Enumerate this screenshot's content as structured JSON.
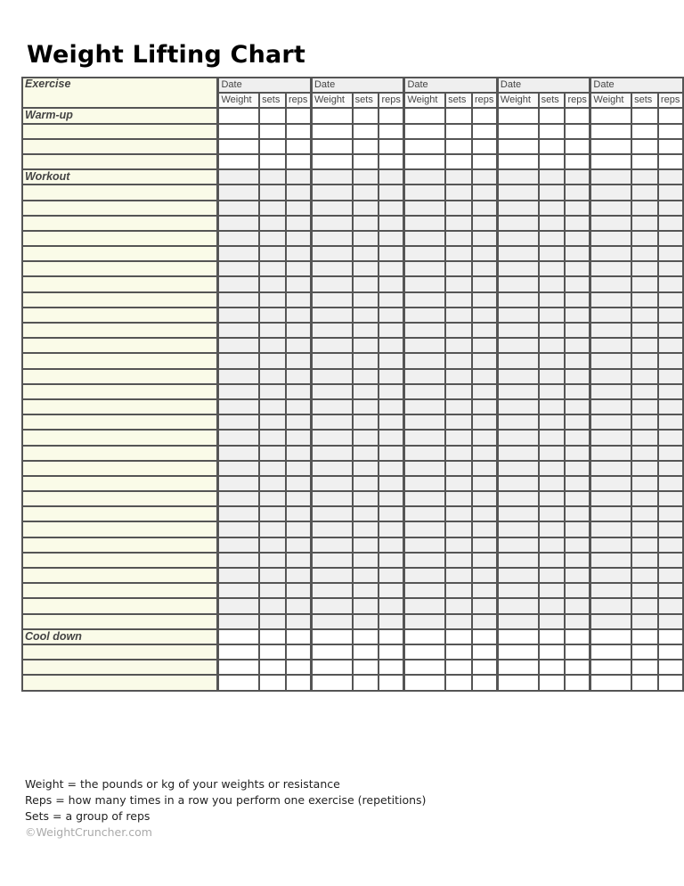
{
  "title": "Weight Lifting Chart",
  "header": {
    "exercise_label": "Exercise",
    "date_label": "Date",
    "date_groups": 5,
    "subheaders": [
      "Weight",
      "sets",
      "reps"
    ]
  },
  "sections": [
    {
      "label": "Warm-up",
      "rows": 3,
      "shaded": false
    },
    {
      "label": "Workout",
      "rows": 29,
      "shaded": true
    },
    {
      "label": "Cool down",
      "rows": 3,
      "shaded": false
    }
  ],
  "notes": [
    "Weight = the pounds or kg of your weights or resistance",
    "Reps = how many times in a row you perform one exercise (repetitions)",
    "Sets = a group of reps"
  ],
  "copyright": "©WeightCruncher.com",
  "colors": {
    "exercise_column": "#fafbe8",
    "shaded_cells": "#f0f0f0",
    "grid_lines": "#555555"
  }
}
